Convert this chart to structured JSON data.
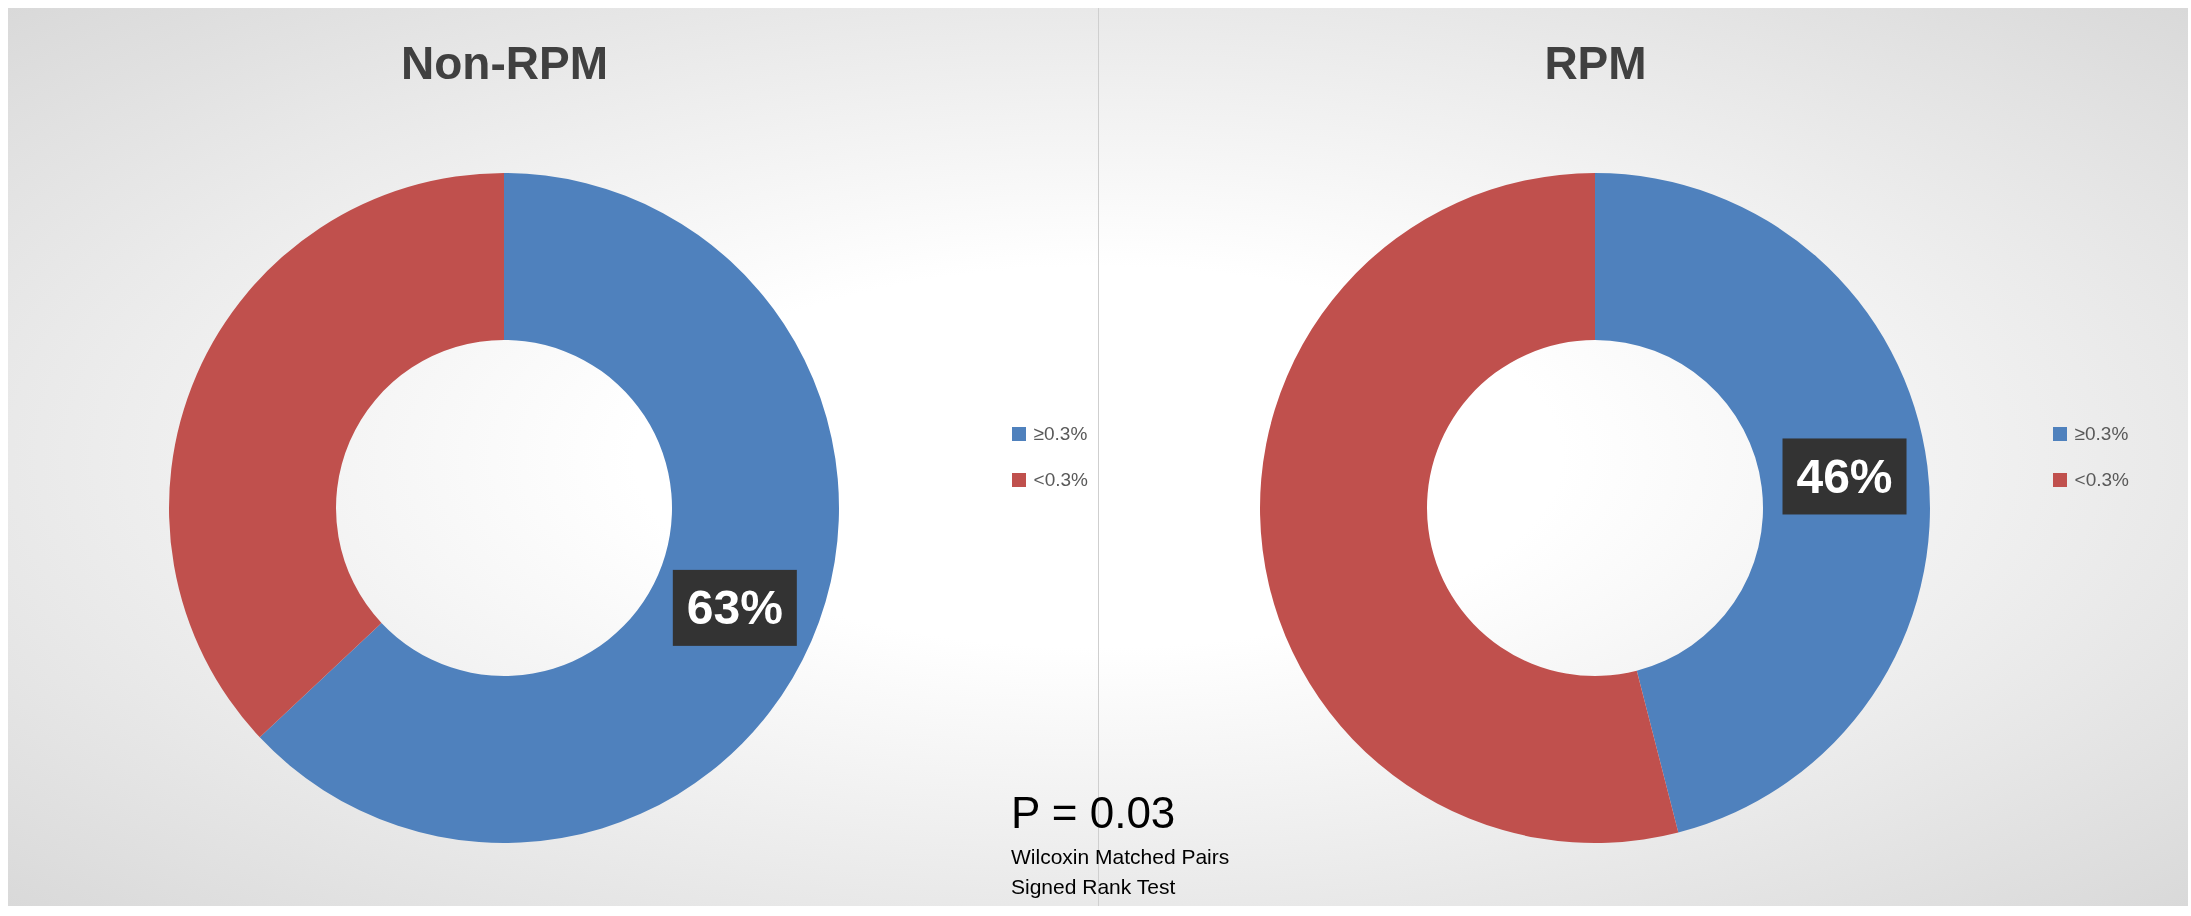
{
  "chart_data": [
    {
      "type": "donut",
      "title": "Non-RPM",
      "categories": [
        "≥0.3%",
        "<0.3%"
      ],
      "values": [
        63,
        37
      ],
      "colors": [
        "#4f81bd",
        "#c0504d"
      ],
      "value_labels": [
        "63%",
        null
      ],
      "legend": "right",
      "annotations": [
        "P = 0.03",
        "Wilcoxin Matched Pairs\nSigned Rank Test"
      ]
    },
    {
      "type": "donut",
      "title": "RPM",
      "categories": [
        "≥0.3%",
        "<0.3%"
      ],
      "values": [
        46,
        54
      ],
      "colors": [
        "#4f81bd",
        "#c0504d"
      ],
      "value_labels": [
        "46%",
        null
      ],
      "legend": "right"
    }
  ]
}
